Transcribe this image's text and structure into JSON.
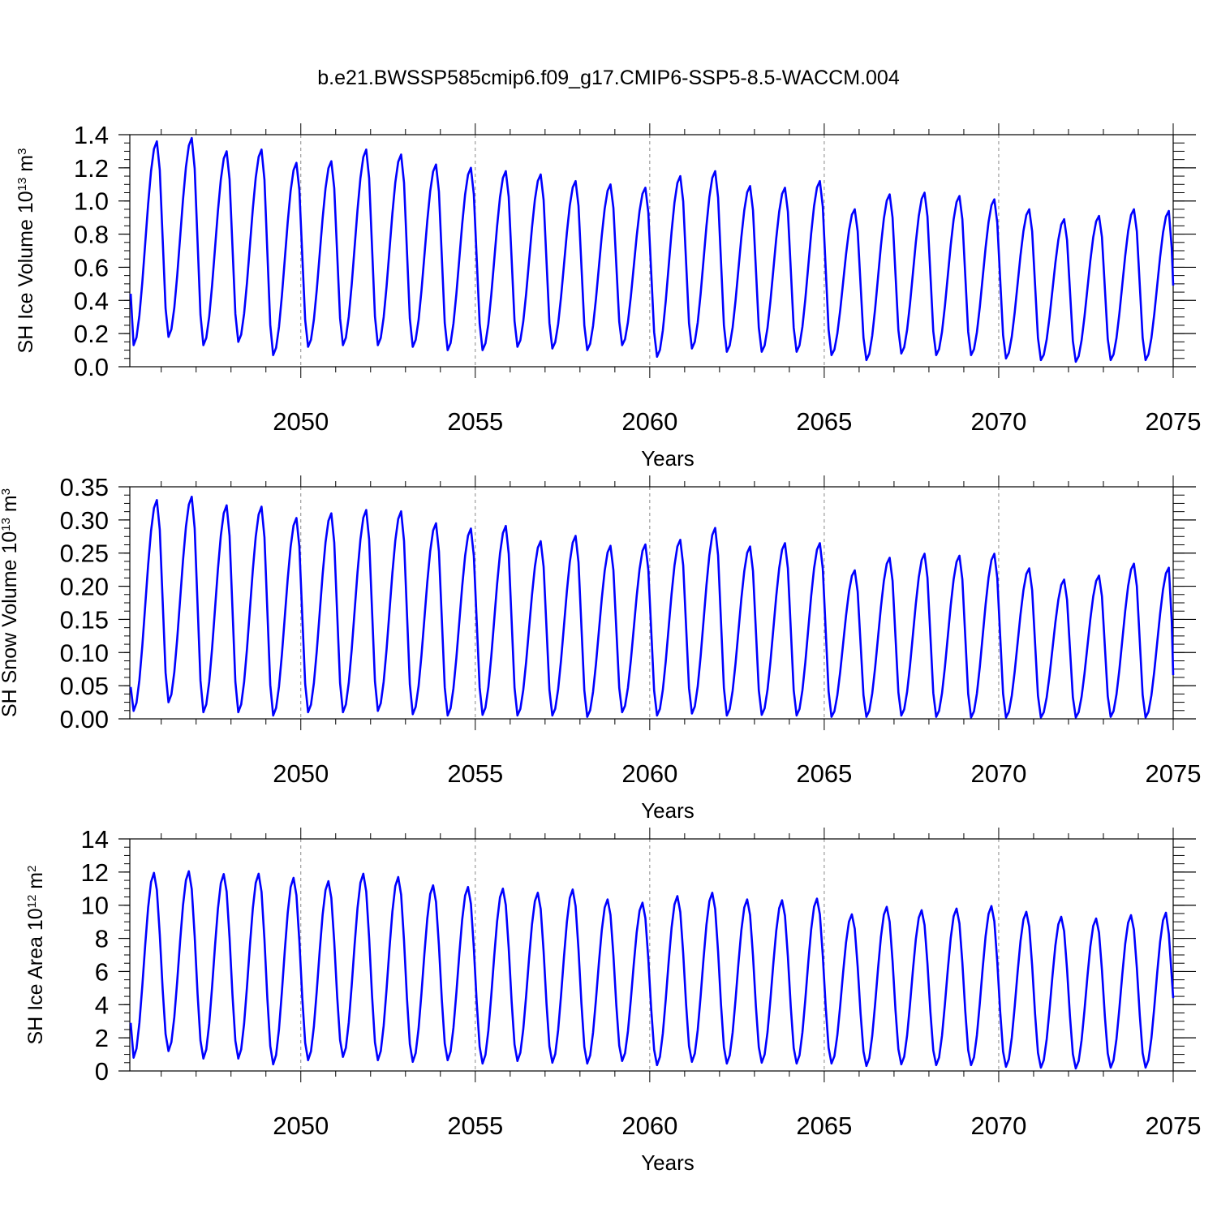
{
  "title": "b.e21.BWSSP585cmip6.f09_g17.CMIP6-SSP5-8.5-WACCM.004",
  "colors": {
    "line": "#0000ff",
    "axis": "#000000",
    "grid": "#888888"
  },
  "chart_data": [
    {
      "type": "line",
      "ylabel_main": "SH Ice Volume 10",
      "ylabel_exp": "13",
      "ylabel_unit": " m",
      "ylabel_unit_exp": "3",
      "xlabel": "Years",
      "xlim": [
        2045.1,
        2075.0
      ],
      "ylim": [
        0.0,
        1.4
      ],
      "xticks": [
        2050,
        2055,
        2060,
        2065,
        2070,
        2075
      ],
      "xtick_labels": [
        "2050",
        "2055",
        "2060",
        "2065",
        "2070",
        "2075"
      ],
      "yticks": [
        0.0,
        0.2,
        0.4,
        0.6,
        0.8,
        1.0,
        1.2,
        1.4
      ],
      "ytick_labels": [
        "0.0",
        "0.2",
        "0.4",
        "0.6",
        "0.8",
        "1.0",
        "1.2",
        "1.4"
      ],
      "yminor_step": 0.05,
      "decimals": 2,
      "series": [
        {
          "name": "SH Ice Volume",
          "start_year": 2045.125,
          "months": 360,
          "peak_month_index": 9,
          "annual_max": [
            1.36,
            1.38,
            1.3,
            1.31,
            1.23,
            1.24,
            1.31,
            1.28,
            1.22,
            1.2,
            1.18,
            1.16,
            1.12,
            1.1,
            1.08,
            1.15,
            1.18,
            1.09,
            1.08,
            1.12,
            0.95,
            1.04,
            1.05,
            1.03,
            1.01,
            0.95,
            0.89,
            0.91,
            0.95,
            0.94
          ],
          "annual_min": [
            0.13,
            0.18,
            0.13,
            0.15,
            0.07,
            0.12,
            0.13,
            0.13,
            0.12,
            0.1,
            0.1,
            0.12,
            0.11,
            0.1,
            0.13,
            0.06,
            0.11,
            0.09,
            0.09,
            0.09,
            0.07,
            0.04,
            0.08,
            0.07,
            0.07,
            0.05,
            0.04,
            0.03,
            0.04,
            0.04
          ],
          "start_value": 0.44,
          "end_value": 0.49
        }
      ]
    },
    {
      "type": "line",
      "ylabel_main": "SH Snow Volume 10",
      "ylabel_exp": "13",
      "ylabel_unit": " m",
      "ylabel_unit_exp": "3",
      "xlabel": "Years",
      "xlim": [
        2045.1,
        2075.0
      ],
      "ylim": [
        0.0,
        0.35
      ],
      "xticks": [
        2050,
        2055,
        2060,
        2065,
        2070,
        2075
      ],
      "xtick_labels": [
        "2050",
        "2055",
        "2060",
        "2065",
        "2070",
        "2075"
      ],
      "yticks": [
        0.0,
        0.05,
        0.1,
        0.15,
        0.2,
        0.25,
        0.3,
        0.35
      ],
      "ytick_labels": [
        "0.00",
        "0.05",
        "0.10",
        "0.15",
        "0.20",
        "0.25",
        "0.30",
        "0.35"
      ],
      "yminor_step": 0.0125,
      "decimals": 3,
      "series": [
        {
          "name": "SH Snow Volume",
          "start_year": 2045.125,
          "months": 360,
          "peak_month_index": 9,
          "annual_max": [
            0.33,
            0.335,
            0.322,
            0.32,
            0.303,
            0.31,
            0.315,
            0.313,
            0.295,
            0.287,
            0.291,
            0.268,
            0.276,
            0.261,
            0.263,
            0.27,
            0.288,
            0.26,
            0.265,
            0.265,
            0.224,
            0.243,
            0.249,
            0.246,
            0.249,
            0.227,
            0.21,
            0.216,
            0.234,
            0.228
          ],
          "annual_min": [
            0.012,
            0.025,
            0.01,
            0.01,
            0.005,
            0.01,
            0.01,
            0.012,
            0.007,
            0.005,
            0.006,
            0.005,
            0.005,
            0.003,
            0.01,
            0.005,
            0.008,
            0.005,
            0.006,
            0.005,
            0.003,
            0.003,
            0.005,
            0.003,
            0.002,
            0.002,
            0.002,
            0.002,
            0.003,
            0.002
          ],
          "start_value": 0.048,
          "end_value": 0.066
        }
      ]
    },
    {
      "type": "line",
      "ylabel_main": "SH Ice Area 10",
      "ylabel_exp": "12",
      "ylabel_unit": " m",
      "ylabel_unit_exp": "2",
      "xlabel": "Years",
      "xlim": [
        2045.1,
        2075.0
      ],
      "ylim": [
        0,
        14
      ],
      "xticks": [
        2050,
        2055,
        2060,
        2065,
        2070,
        2075
      ],
      "xtick_labels": [
        "2050",
        "2055",
        "2060",
        "2065",
        "2070",
        "2075"
      ],
      "yticks": [
        0,
        2,
        4,
        6,
        8,
        10,
        12,
        14
      ],
      "ytick_labels": [
        "0",
        "2",
        "4",
        "6",
        "8",
        "10",
        "12",
        "14"
      ],
      "yminor_step": 0.5,
      "decimals": 2,
      "series": [
        {
          "name": "SH Ice Area",
          "start_year": 2045.125,
          "months": 360,
          "peak_month_index": 8,
          "annual_max": [
            11.95,
            12.05,
            11.88,
            11.9,
            11.65,
            11.45,
            11.9,
            11.7,
            11.2,
            11.1,
            11.0,
            10.75,
            10.95,
            10.35,
            10.15,
            10.55,
            10.75,
            10.35,
            10.3,
            10.4,
            9.45,
            9.9,
            9.7,
            9.8,
            9.95,
            9.6,
            9.3,
            9.2,
            9.4,
            9.55
          ],
          "annual_min": [
            0.8,
            1.2,
            0.75,
            0.75,
            0.4,
            0.65,
            0.85,
            0.65,
            0.55,
            0.65,
            0.45,
            0.6,
            0.5,
            0.45,
            0.6,
            0.35,
            0.55,
            0.45,
            0.5,
            0.45,
            0.45,
            0.3,
            0.4,
            0.35,
            0.35,
            0.25,
            0.2,
            0.15,
            0.2,
            0.2
          ],
          "start_value": 2.9,
          "end_value": 4.4
        }
      ]
    }
  ]
}
